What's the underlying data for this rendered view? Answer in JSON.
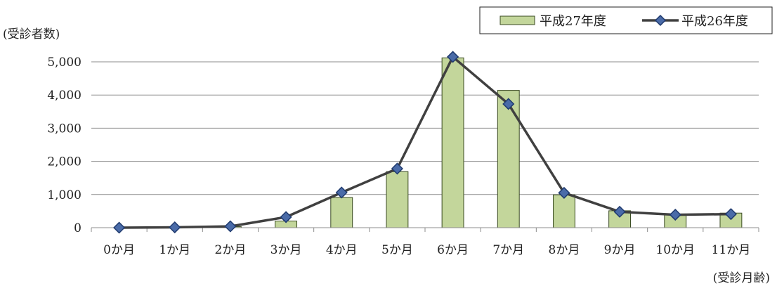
{
  "chart_data": {
    "type": "bar",
    "categories": [
      "0か月",
      "1か月",
      "2か月",
      "3か月",
      "4か月",
      "5か月",
      "6か月",
      "7か月",
      "8か月",
      "9か月",
      "10か月",
      "11か月"
    ],
    "series": [
      {
        "name": "平成27年度",
        "type": "bar",
        "color": "#c3d69b",
        "border": "#3a4a22",
        "values": [
          0,
          0,
          30,
          200,
          910,
          1690,
          5120,
          4140,
          990,
          510,
          390,
          440
        ]
      },
      {
        "name": "平成26年度",
        "type": "line",
        "color": "#404040",
        "marker_fill": "#4a6ba8",
        "marker_edge": "#1f3a6e",
        "values": [
          0,
          10,
          40,
          320,
          1060,
          1780,
          5150,
          3730,
          1050,
          480,
          390,
          410
        ]
      }
    ],
    "ylabel": "(受診者数)",
    "xlabel": "(受診月齢)",
    "ylim": [
      0,
      5000
    ],
    "yticks": [
      0,
      1000,
      2000,
      3000,
      4000,
      5000
    ],
    "ytick_labels": [
      "0",
      "1,000",
      "2,000",
      "3,000",
      "4,000",
      "5,000"
    ],
    "grid": true,
    "legend_position": "top-right"
  }
}
